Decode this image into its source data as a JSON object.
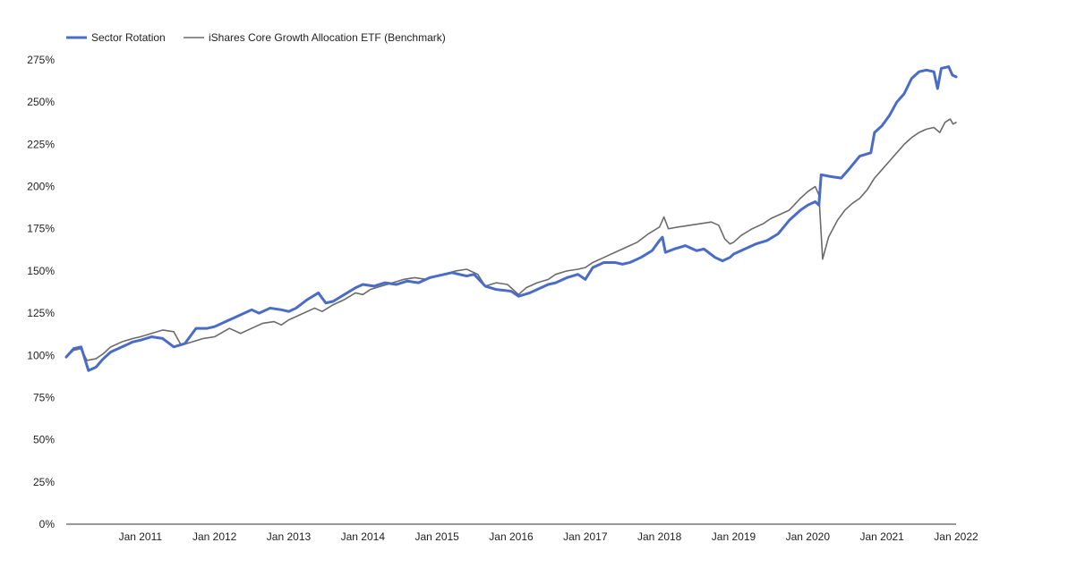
{
  "colors": {
    "sector_rotation": "#4a6cc7",
    "benchmark": "#6b6b6b",
    "axis": "#333333",
    "text": "#222222"
  },
  "chart_data": {
    "type": "line",
    "title": "",
    "xlabel": "",
    "ylabel": "",
    "legend_position": "top-left",
    "grid": false,
    "x_range": [
      2010.0,
      2022.0
    ],
    "ylim": [
      0,
      275
    ],
    "y_ticks": [
      {
        "value": 0,
        "label": "0%"
      },
      {
        "value": 25,
        "label": "25%"
      },
      {
        "value": 50,
        "label": "50%"
      },
      {
        "value": 75,
        "label": "75%"
      },
      {
        "value": 100,
        "label": "100%"
      },
      {
        "value": 125,
        "label": "125%"
      },
      {
        "value": 150,
        "label": "150%"
      },
      {
        "value": 175,
        "label": "175%"
      },
      {
        "value": 200,
        "label": "200%"
      },
      {
        "value": 225,
        "label": "225%"
      },
      {
        "value": 250,
        "label": "250%"
      },
      {
        "value": 275,
        "label": "275%"
      }
    ],
    "x_ticks": [
      {
        "value": 2011,
        "label": "Jan 2011"
      },
      {
        "value": 2012,
        "label": "Jan 2012"
      },
      {
        "value": 2013,
        "label": "Jan 2013"
      },
      {
        "value": 2014,
        "label": "Jan 2014"
      },
      {
        "value": 2015,
        "label": "Jan 2015"
      },
      {
        "value": 2016,
        "label": "Jan 2016"
      },
      {
        "value": 2017,
        "label": "Jan 2017"
      },
      {
        "value": 2018,
        "label": "Jan 2018"
      },
      {
        "value": 2019,
        "label": "Jan 2019"
      },
      {
        "value": 2020,
        "label": "Jan 2020"
      },
      {
        "value": 2021,
        "label": "Jan 2021"
      },
      {
        "value": 2022,
        "label": "Jan 2022"
      }
    ],
    "series": [
      {
        "name": "Sector Rotation",
        "color": "#4a6cc7",
        "points": [
          [
            2010.0,
            99
          ],
          [
            2010.1,
            104
          ],
          [
            2010.2,
            105
          ],
          [
            2010.3,
            91
          ],
          [
            2010.4,
            93
          ],
          [
            2010.5,
            98
          ],
          [
            2010.6,
            102
          ],
          [
            2010.75,
            105
          ],
          [
            2010.9,
            108
          ],
          [
            2011.0,
            109
          ],
          [
            2011.15,
            111
          ],
          [
            2011.3,
            110
          ],
          [
            2011.45,
            105
          ],
          [
            2011.6,
            107
          ],
          [
            2011.75,
            116
          ],
          [
            2011.9,
            116
          ],
          [
            2012.0,
            117
          ],
          [
            2012.2,
            121
          ],
          [
            2012.35,
            124
          ],
          [
            2012.5,
            127
          ],
          [
            2012.6,
            125
          ],
          [
            2012.75,
            128
          ],
          [
            2012.9,
            127
          ],
          [
            2013.0,
            126
          ],
          [
            2013.1,
            128
          ],
          [
            2013.25,
            133
          ],
          [
            2013.4,
            137
          ],
          [
            2013.5,
            131
          ],
          [
            2013.6,
            132
          ],
          [
            2013.75,
            136
          ],
          [
            2013.9,
            140
          ],
          [
            2014.0,
            142
          ],
          [
            2014.15,
            141
          ],
          [
            2014.3,
            143
          ],
          [
            2014.45,
            142
          ],
          [
            2014.6,
            144
          ],
          [
            2014.75,
            143
          ],
          [
            2014.9,
            146
          ],
          [
            2015.0,
            147
          ],
          [
            2015.1,
            148
          ],
          [
            2015.2,
            149
          ],
          [
            2015.4,
            147
          ],
          [
            2015.5,
            148
          ],
          [
            2015.65,
            141
          ],
          [
            2015.8,
            139
          ],
          [
            2016.0,
            138
          ],
          [
            2016.1,
            135
          ],
          [
            2016.25,
            137
          ],
          [
            2016.4,
            140
          ],
          [
            2016.5,
            142
          ],
          [
            2016.6,
            143
          ],
          [
            2016.75,
            146
          ],
          [
            2016.9,
            148
          ],
          [
            2017.0,
            145
          ],
          [
            2017.1,
            152
          ],
          [
            2017.25,
            155
          ],
          [
            2017.4,
            155
          ],
          [
            2017.5,
            154
          ],
          [
            2017.6,
            155
          ],
          [
            2017.75,
            158
          ],
          [
            2017.9,
            162
          ],
          [
            2018.0,
            168
          ],
          [
            2018.04,
            170
          ],
          [
            2018.08,
            161
          ],
          [
            2018.2,
            163
          ],
          [
            2018.35,
            165
          ],
          [
            2018.5,
            162
          ],
          [
            2018.6,
            163
          ],
          [
            2018.75,
            158
          ],
          [
            2018.85,
            156
          ],
          [
            2018.95,
            158
          ],
          [
            2019.0,
            160
          ],
          [
            2019.15,
            163
          ],
          [
            2019.3,
            166
          ],
          [
            2019.45,
            168
          ],
          [
            2019.6,
            172
          ],
          [
            2019.75,
            180
          ],
          [
            2019.9,
            186
          ],
          [
            2020.0,
            189
          ],
          [
            2020.1,
            191
          ],
          [
            2020.15,
            189
          ],
          [
            2020.18,
            207
          ],
          [
            2020.3,
            206
          ],
          [
            2020.45,
            205
          ],
          [
            2020.55,
            210
          ],
          [
            2020.7,
            218
          ],
          [
            2020.85,
            220
          ],
          [
            2020.9,
            232
          ],
          [
            2021.0,
            236
          ],
          [
            2021.1,
            242
          ],
          [
            2021.2,
            250
          ],
          [
            2021.3,
            255
          ],
          [
            2021.4,
            264
          ],
          [
            2021.5,
            268
          ],
          [
            2021.6,
            269
          ],
          [
            2021.7,
            268
          ],
          [
            2021.75,
            258
          ],
          [
            2021.8,
            270
          ],
          [
            2021.9,
            271
          ],
          [
            2021.95,
            266
          ],
          [
            2022.0,
            265
          ]
        ]
      },
      {
        "name": "iShares Core Growth Allocation ETF (Benchmark)",
        "color": "#6b6b6b",
        "points": [
          [
            2010.0,
            99
          ],
          [
            2010.1,
            103
          ],
          [
            2010.2,
            104
          ],
          [
            2010.28,
            97
          ],
          [
            2010.4,
            98
          ],
          [
            2010.5,
            101
          ],
          [
            2010.6,
            105
          ],
          [
            2010.75,
            108
          ],
          [
            2010.9,
            110
          ],
          [
            2011.0,
            111
          ],
          [
            2011.15,
            113
          ],
          [
            2011.3,
            115
          ],
          [
            2011.45,
            114
          ],
          [
            2011.55,
            106
          ],
          [
            2011.7,
            108
          ],
          [
            2011.85,
            110
          ],
          [
            2012.0,
            111
          ],
          [
            2012.2,
            116
          ],
          [
            2012.35,
            113
          ],
          [
            2012.5,
            116
          ],
          [
            2012.65,
            119
          ],
          [
            2012.8,
            120
          ],
          [
            2012.9,
            118
          ],
          [
            2013.0,
            121
          ],
          [
            2013.2,
            125
          ],
          [
            2013.35,
            128
          ],
          [
            2013.45,
            126
          ],
          [
            2013.6,
            130
          ],
          [
            2013.75,
            133
          ],
          [
            2013.9,
            137
          ],
          [
            2014.0,
            136
          ],
          [
            2014.1,
            139
          ],
          [
            2014.25,
            141
          ],
          [
            2014.4,
            143
          ],
          [
            2014.55,
            145
          ],
          [
            2014.7,
            146
          ],
          [
            2014.85,
            145
          ],
          [
            2015.0,
            147
          ],
          [
            2015.1,
            148
          ],
          [
            2015.25,
            150
          ],
          [
            2015.4,
            151
          ],
          [
            2015.55,
            148
          ],
          [
            2015.65,
            141
          ],
          [
            2015.8,
            143
          ],
          [
            2015.95,
            142
          ],
          [
            2016.1,
            136
          ],
          [
            2016.2,
            140
          ],
          [
            2016.35,
            143
          ],
          [
            2016.5,
            145
          ],
          [
            2016.6,
            148
          ],
          [
            2016.75,
            150
          ],
          [
            2016.9,
            151
          ],
          [
            2017.0,
            152
          ],
          [
            2017.1,
            155
          ],
          [
            2017.25,
            158
          ],
          [
            2017.4,
            161
          ],
          [
            2017.55,
            164
          ],
          [
            2017.7,
            167
          ],
          [
            2017.85,
            172
          ],
          [
            2018.0,
            176
          ],
          [
            2018.06,
            182
          ],
          [
            2018.12,
            175
          ],
          [
            2018.25,
            176
          ],
          [
            2018.4,
            177
          ],
          [
            2018.55,
            178
          ],
          [
            2018.7,
            179
          ],
          [
            2018.8,
            177
          ],
          [
            2018.88,
            169
          ],
          [
            2018.95,
            166
          ],
          [
            2019.0,
            167
          ],
          [
            2019.1,
            171
          ],
          [
            2019.25,
            175
          ],
          [
            2019.4,
            178
          ],
          [
            2019.5,
            181
          ],
          [
            2019.6,
            183
          ],
          [
            2019.75,
            186
          ],
          [
            2019.9,
            193
          ],
          [
            2020.0,
            197
          ],
          [
            2020.1,
            200
          ],
          [
            2020.15,
            195
          ],
          [
            2020.2,
            157
          ],
          [
            2020.28,
            170
          ],
          [
            2020.4,
            180
          ],
          [
            2020.5,
            186
          ],
          [
            2020.6,
            190
          ],
          [
            2020.7,
            193
          ],
          [
            2020.8,
            198
          ],
          [
            2020.9,
            205
          ],
          [
            2021.0,
            210
          ],
          [
            2021.1,
            215
          ],
          [
            2021.2,
            220
          ],
          [
            2021.3,
            225
          ],
          [
            2021.4,
            229
          ],
          [
            2021.5,
            232
          ],
          [
            2021.6,
            234
          ],
          [
            2021.7,
            235
          ],
          [
            2021.78,
            232
          ],
          [
            2021.85,
            238
          ],
          [
            2021.92,
            240
          ],
          [
            2021.96,
            237
          ],
          [
            2022.0,
            238
          ]
        ]
      }
    ]
  }
}
